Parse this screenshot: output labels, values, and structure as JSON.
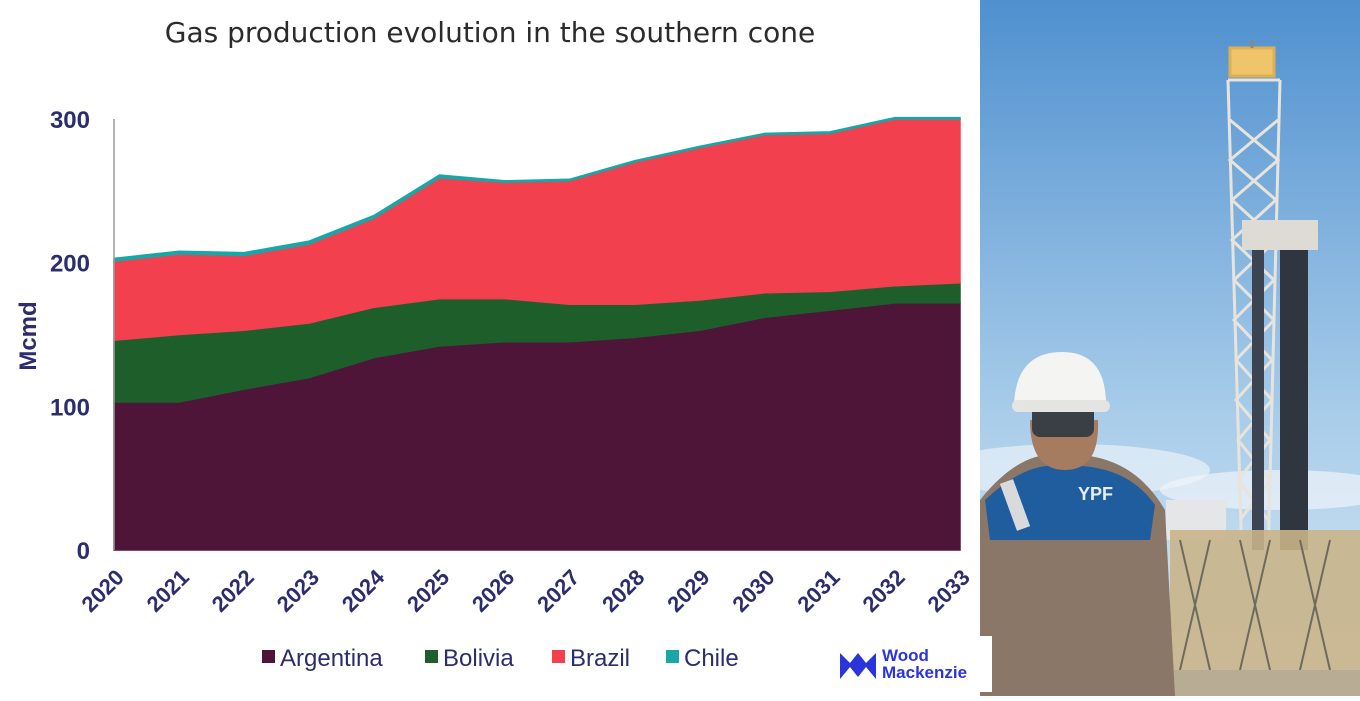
{
  "chart_data": {
    "type": "area",
    "stacked": true,
    "title": "Gas production evolution in the southern cone",
    "xlabel": "",
    "ylabel": "Mcmd",
    "ylim": [
      0,
      300
    ],
    "yticks": [
      0,
      100,
      200,
      300
    ],
    "x": [
      "2020",
      "2021",
      "2022",
      "2023",
      "2024",
      "2025",
      "2026",
      "2027",
      "2028",
      "2029",
      "2030",
      "2031",
      "2032",
      "2033"
    ],
    "legend_position": "bottom",
    "grid": false,
    "series": [
      {
        "name": "Argentina",
        "color": "#4e1538",
        "values": [
          103,
          103,
          112,
          120,
          134,
          142,
          145,
          145,
          148,
          153,
          162,
          167,
          172,
          172
        ]
      },
      {
        "name": "Bolivia",
        "color": "#1e5e2b",
        "values": [
          43,
          47,
          41,
          38,
          35,
          33,
          30,
          26,
          23,
          21,
          17,
          13,
          12,
          14
        ]
      },
      {
        "name": "Brazil",
        "color": "#f2404e",
        "values": [
          55,
          56,
          52,
          55,
          62,
          84,
          81,
          86,
          99,
          106,
          110,
          110,
          116,
          114
        ]
      },
      {
        "name": "Chile",
        "color": "#1aa6a6",
        "values": [
          2,
          2,
          2,
          2,
          2,
          2,
          1,
          1,
          1,
          1,
          1,
          1,
          1,
          1
        ]
      }
    ]
  },
  "logo": {
    "line1": "Wood",
    "line2": "Mackenzie",
    "color": "#2a35d9"
  },
  "photo": {
    "helmet_logo": "YPF"
  }
}
